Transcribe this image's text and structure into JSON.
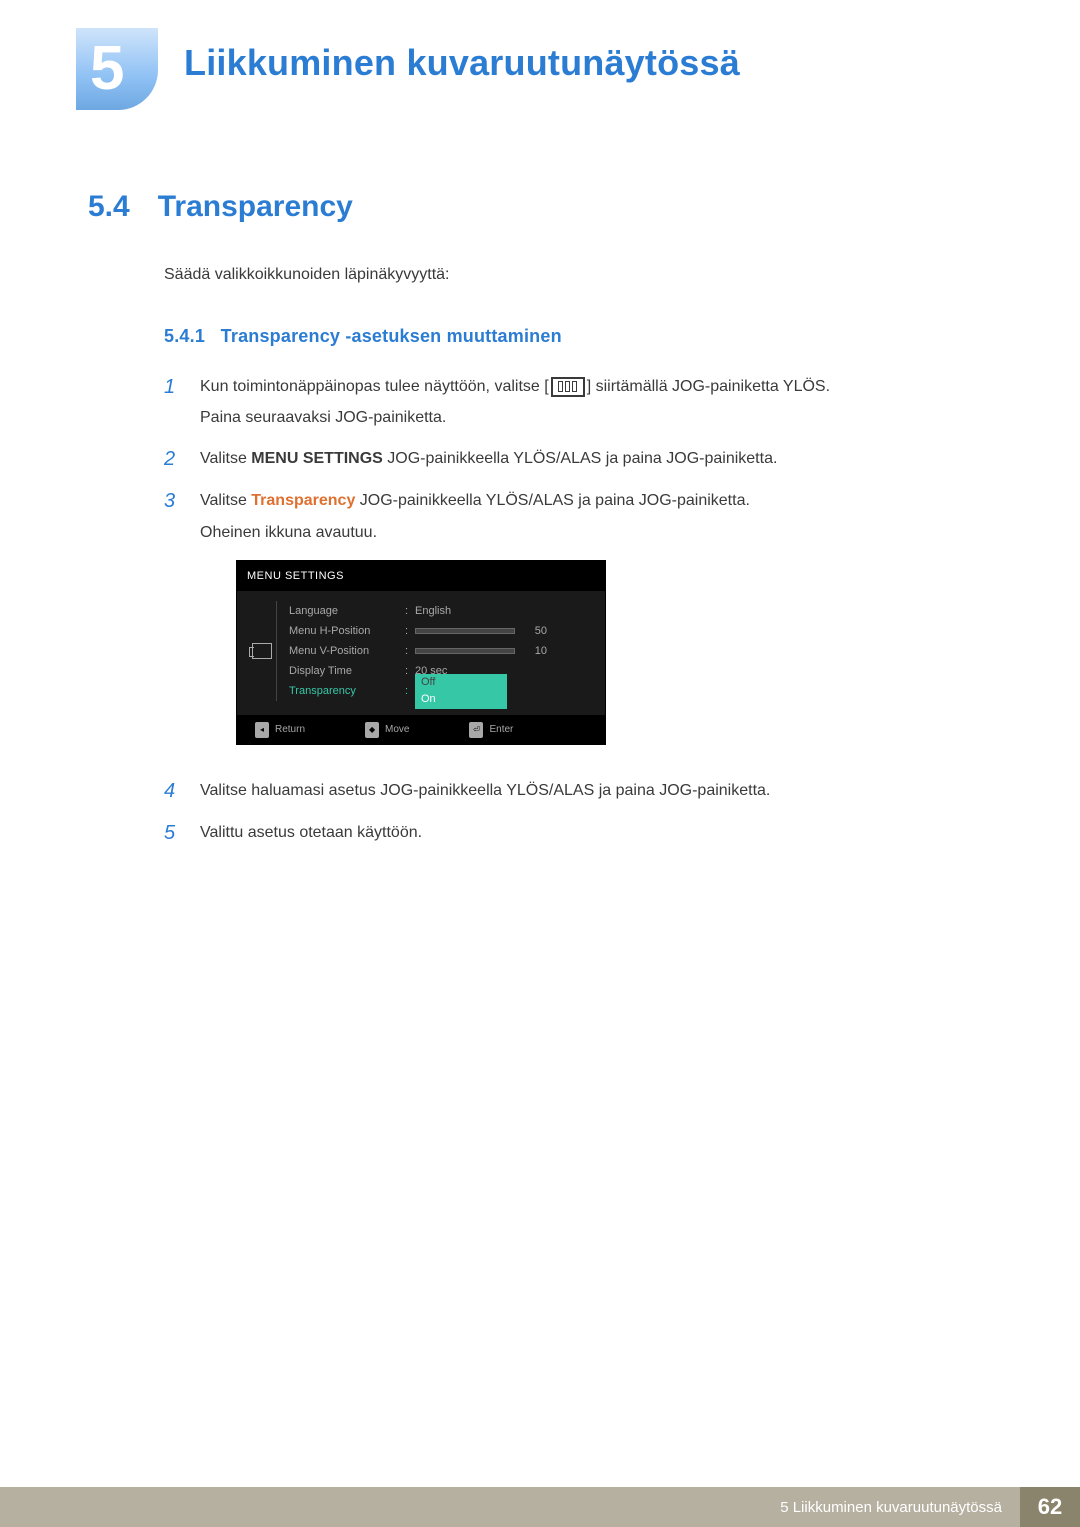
{
  "chapter": {
    "number": "5",
    "title": "Liikkuminen kuvaruutunäytössä"
  },
  "section": {
    "number": "5.4",
    "title": "Transparency",
    "desc": "Säädä valikkoikkunoiden läpinäkyvyyttä:"
  },
  "subsection": {
    "number": "5.4.1",
    "title": "Transparency -asetuksen muuttaminen"
  },
  "steps": {
    "s1_a": "Kun toimintonäppäinopas tulee näyttöön, valitse [",
    "s1_b": "] siirtämällä JOG-painiketta YLÖS.",
    "s1_c": "Paina seuraavaksi JOG-painiketta.",
    "s2_a": "Valitse ",
    "s2_b": "MENU SETTINGS",
    "s2_c": " JOG-painikkeella YLÖS/ALAS ja paina JOG-painiketta.",
    "s3_a": "Valitse ",
    "s3_b": "Transparency",
    "s3_c": " JOG-painikkeella YLÖS/ALAS ja paina JOG-painiketta.",
    "s3_d": "Oheinen ikkuna avautuu.",
    "s4": "Valitse haluamasi asetus JOG-painikkeella YLÖS/ALAS ja paina JOG-painiketta.",
    "s5": "Valittu asetus otetaan käyttöön."
  },
  "osd": {
    "header": "MENU SETTINGS",
    "rows": {
      "language_label": "Language",
      "language_value": "English",
      "hpos_label": "Menu H-Position",
      "hpos_value": "50",
      "vpos_label": "Menu V-Position",
      "vpos_value": "10",
      "dtime_label": "Display Time",
      "dtime_value": "20 sec",
      "trans_label": "Transparency",
      "trans_opt_off": "Off",
      "trans_opt_on": "On"
    },
    "footer": {
      "return": "Return",
      "move": "Move",
      "enter": "Enter"
    },
    "colors": {
      "bg": "#1a1a1a",
      "header_bg": "#000000",
      "text_dim": "#a8a8a8",
      "accent": "#36c7a7"
    }
  },
  "footer": {
    "text": "5 Liikkuminen kuvaruutunäytössä",
    "page": "62"
  },
  "palette": {
    "heading_blue": "#2b7cd3",
    "body_text": "#3a3a3a",
    "accent_orange": "#e07030",
    "footer_left": "#b6b0a0",
    "footer_right": "#8b846c"
  }
}
